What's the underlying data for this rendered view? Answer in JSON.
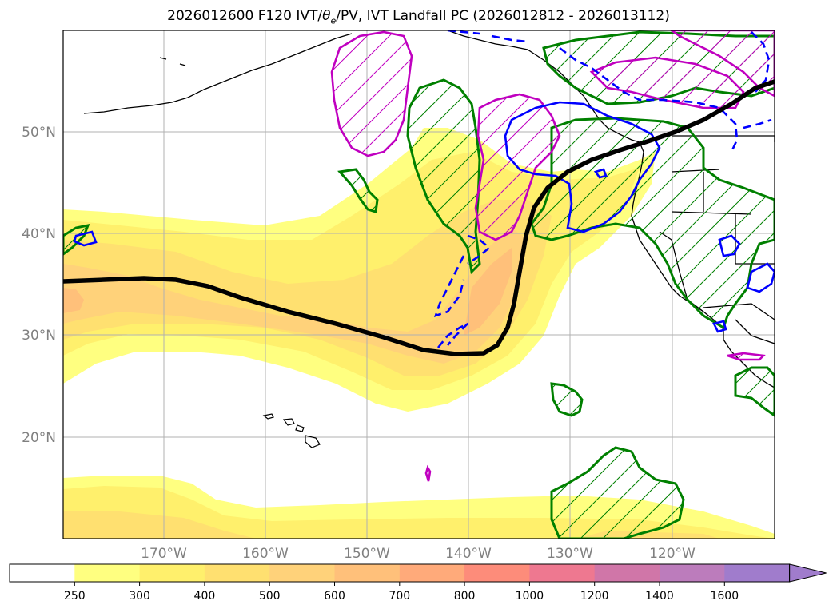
{
  "title": {
    "text_parts": [
      "2026012600 F120 IVT/",
      "θ",
      "e",
      "/PV, IVT Landfall PC (2026012812 - 2026013112)"
    ]
  },
  "map": {
    "lat_labels": [
      "50°N",
      "40°N",
      "30°N",
      "20°N"
    ],
    "lon_labels": [
      "170°W",
      "160°W",
      "150°W",
      "140°W",
      "130°W",
      "120°W"
    ],
    "lat_values": [
      50,
      40,
      30,
      20
    ],
    "lon_values": [
      -170,
      -160,
      -150,
      -140,
      -130,
      -120
    ]
  },
  "colorbar": {
    "ticks": [
      "250",
      "300",
      "400",
      "500",
      "600",
      "700",
      "800",
      "1000",
      "1200",
      "1400",
      "1600"
    ],
    "colors": [
      "#ffffff",
      "#ffff80",
      "#fff06c",
      "#ffe070",
      "#ffd27a",
      "#ffc07a",
      "#ffaa7a",
      "#fd8c7a",
      "#ee7890",
      "#d076a8",
      "#bc7cbc",
      "#a07ccc"
    ],
    "extend": "max"
  },
  "styles": {
    "pv_color": "#0000ff",
    "theta_color": "#c000c0",
    "precip_color": "#008000",
    "pc_color": "#000000",
    "grid_color": "#b0b0b0",
    "label_color": "#808080"
  }
}
